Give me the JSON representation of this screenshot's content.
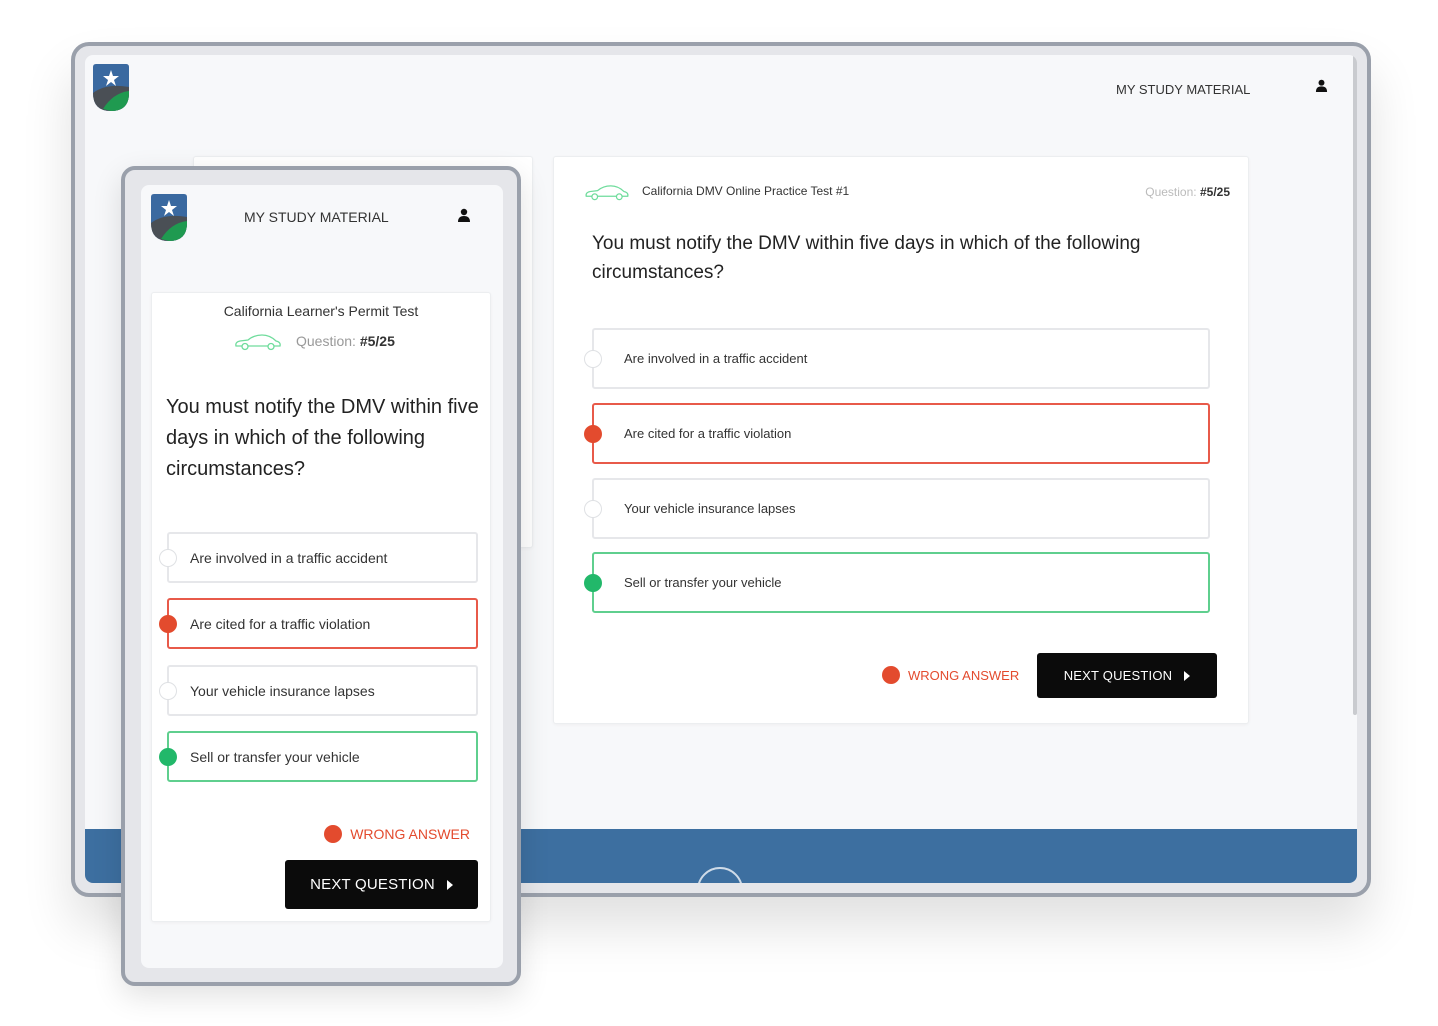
{
  "desktop": {
    "nav": {
      "study_material": "MY STUDY MATERIAL",
      "user_icon": "user-icon"
    },
    "quiz": {
      "test_title": "California DMV Online Practice Test #1",
      "question_label": "Question:",
      "question_number": "#5/25",
      "question": "You must notify the DMV within five days in which of the following circumstances?",
      "options": [
        {
          "text": "Are involved in a traffic accident",
          "state": "none"
        },
        {
          "text": "Are cited for a traffic violation",
          "state": "wrong"
        },
        {
          "text": "Your vehicle insurance lapses",
          "state": "none"
        },
        {
          "text": "Sell or transfer your vehicle",
          "state": "correct"
        }
      ],
      "result": "WRONG ANSWER",
      "next_button": "NEXT QUESTION"
    }
  },
  "mobile": {
    "nav": {
      "study_material": "MY STUDY MATERIAL",
      "user_icon": "user-icon"
    },
    "quiz": {
      "test_title": "California Learner's Permit Test",
      "question_label": "Question:",
      "question_number": "#5/25",
      "question": "You must notify the DMV within five days in which of the following circumstances?",
      "options": [
        {
          "text": "Are involved in a traffic accident",
          "state": "none"
        },
        {
          "text": "Are cited for a traffic violation",
          "state": "wrong"
        },
        {
          "text": "Your vehicle insurance lapses",
          "state": "none"
        },
        {
          "text": "Sell or transfer your vehicle",
          "state": "correct"
        }
      ],
      "result": "WRONG ANSWER",
      "next_button": "NEXT QUESTION"
    }
  },
  "colors": {
    "brand_blue": "#3d6fa0",
    "wrong": "#e34b2e",
    "correct": "#22b86a",
    "button": "#0b0b0b"
  }
}
